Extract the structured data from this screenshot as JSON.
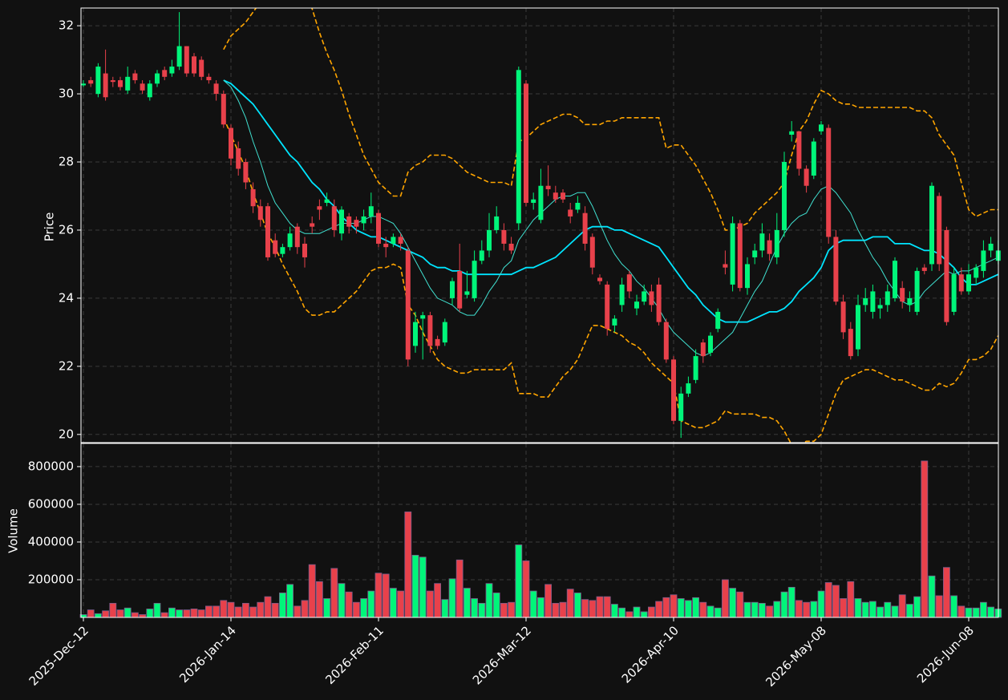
{
  "chart_data": {
    "type": "candlestick",
    "categories": [
      "2025-Dec-12",
      null,
      null,
      null,
      null,
      null,
      null,
      null,
      null,
      null,
      null,
      null,
      null,
      null,
      null,
      null,
      null,
      null,
      null,
      null,
      "2026-Jan-14",
      null,
      null,
      null,
      null,
      null,
      null,
      null,
      null,
      null,
      null,
      null,
      null,
      null,
      null,
      null,
      null,
      null,
      null,
      null,
      "2026-Feb-11",
      null,
      null,
      null,
      null,
      null,
      null,
      null,
      null,
      null,
      null,
      null,
      null,
      null,
      null,
      null,
      null,
      null,
      null,
      null,
      "2026-Mar-12",
      null,
      null,
      null,
      null,
      null,
      null,
      null,
      null,
      null,
      null,
      null,
      null,
      null,
      null,
      null,
      null,
      null,
      null,
      null,
      "2026-Apr-10",
      null,
      null,
      null,
      null,
      null,
      null,
      null,
      null,
      null,
      null,
      null,
      null,
      null,
      null,
      null,
      null,
      null,
      null,
      null,
      "2026-May-08",
      null,
      null,
      null,
      null,
      null,
      null,
      null,
      null,
      null,
      null,
      null,
      null,
      null,
      null,
      null,
      null,
      null,
      null,
      null,
      "2026-Jun-08",
      null,
      null,
      null,
      null
    ],
    "open": [
      30.25,
      30.4,
      30.0,
      30.6,
      30.4,
      30.4,
      30.1,
      30.6,
      30.3,
      29.9,
      30.3,
      30.7,
      30.6,
      30.8,
      31.4,
      31.1,
      31.0,
      30.5,
      30.3,
      30.0,
      29.0,
      28.4,
      28.0,
      27.2,
      26.7,
      26.7,
      25.7,
      25.3,
      25.5,
      26.1,
      25.6,
      26.2,
      26.7,
      26.8,
      26.7,
      25.9,
      26.4,
      26.3,
      26.2,
      26.4,
      26.5,
      25.6,
      25.6,
      25.8,
      25.4,
      22.6,
      23.4,
      23.5,
      22.8,
      22.7,
      24.0,
      24.8,
      24.1,
      24.0,
      25.1,
      25.4,
      26.0,
      26.0,
      25.6,
      26.2,
      30.3,
      26.8,
      26.3,
      27.3,
      27.1,
      27.1,
      26.6,
      26.6,
      26.5,
      25.8,
      24.6,
      24.4,
      23.2,
      23.8,
      24.7,
      23.7,
      23.9,
      24.2,
      24.4,
      23.3,
      22.2,
      20.4,
      21.2,
      21.6,
      22.7,
      22.4,
      23.1,
      25.0,
      24.4,
      26.2,
      24.3,
      25.2,
      25.4,
      25.7,
      25.2,
      26.0,
      28.8,
      28.9,
      27.8,
      27.6,
      28.9,
      29.0,
      25.8,
      23.9,
      23.1,
      22.5,
      23.8,
      23.6,
      23.7,
      23.8,
      24.0,
      24.3,
      23.8,
      23.6,
      24.9,
      25.0,
      27.0,
      26.0,
      23.6,
      24.7,
      24.2,
      24.6,
      24.8,
      25.4,
      25.1
    ],
    "high": [
      30.4,
      30.5,
      30.9,
      31.3,
      30.5,
      30.5,
      30.8,
      30.7,
      30.4,
      30.4,
      30.7,
      30.8,
      31.0,
      32.4,
      31.4,
      31.2,
      31.1,
      30.6,
      30.4,
      30.1,
      29.1,
      28.6,
      28.1,
      27.4,
      26.9,
      26.8,
      25.9,
      25.6,
      26.1,
      26.2,
      25.8,
      26.4,
      26.9,
      27.1,
      26.9,
      26.7,
      26.5,
      26.4,
      26.6,
      27.1,
      26.6,
      25.8,
      25.9,
      25.9,
      25.5,
      23.6,
      23.6,
      23.6,
      22.9,
      23.4,
      24.6,
      25.6,
      24.8,
      25.4,
      25.7,
      26.5,
      26.7,
      26.2,
      25.8,
      30.8,
      30.4,
      27.1,
      27.8,
      27.9,
      27.3,
      27.2,
      26.8,
      27.0,
      26.7,
      25.9,
      24.7,
      24.5,
      23.5,
      24.6,
      24.8,
      24.1,
      24.4,
      24.4,
      24.6,
      23.4,
      22.3,
      21.4,
      21.7,
      22.5,
      22.8,
      23.0,
      23.7,
      25.4,
      26.4,
      26.3,
      25.2,
      25.6,
      26.2,
      25.9,
      26.5,
      28.3,
      29.2,
      28.9,
      27.9,
      28.7,
      29.2,
      29.1,
      26.0,
      24.1,
      23.3,
      24.1,
      24.3,
      24.4,
      24.0,
      24.4,
      25.2,
      24.5,
      24.2,
      24.9,
      25.0,
      27.4,
      27.1,
      26.1,
      24.9,
      24.9,
      25.0,
      25.0,
      25.7,
      25.8,
      25.7
    ],
    "low": [
      30.2,
      30.2,
      29.9,
      29.8,
      30.2,
      30.1,
      30.0,
      30.3,
      30.0,
      29.8,
      30.2,
      30.4,
      30.5,
      30.7,
      30.5,
      30.5,
      30.4,
      30.3,
      29.8,
      29.0,
      27.9,
      27.6,
      27.2,
      26.5,
      26.1,
      25.1,
      25.2,
      25.2,
      25.4,
      25.3,
      24.9,
      25.9,
      26.3,
      26.7,
      25.8,
      25.7,
      25.9,
      25.9,
      26.0,
      26.2,
      25.5,
      25.2,
      25.5,
      25.4,
      22.0,
      22.4,
      22.2,
      22.4,
      22.5,
      22.6,
      23.8,
      23.6,
      24.0,
      23.9,
      25.0,
      25.2,
      25.9,
      25.4,
      25.3,
      26.0,
      26.7,
      26.6,
      26.2,
      27.0,
      26.8,
      26.8,
      26.2,
      26.5,
      25.4,
      24.7,
      24.4,
      22.9,
      23.0,
      23.6,
      24.0,
      23.5,
      23.8,
      23.6,
      23.2,
      22.1,
      20.3,
      19.9,
      21.1,
      21.5,
      22.1,
      22.3,
      23.0,
      24.7,
      24.2,
      24.2,
      24.1,
      25.0,
      25.2,
      25.1,
      25.0,
      25.8,
      28.6,
      27.6,
      27.1,
      27.5,
      28.8,
      25.6,
      23.8,
      22.8,
      22.2,
      22.3,
      23.6,
      23.4,
      23.4,
      23.6,
      23.9,
      23.7,
      23.6,
      23.5,
      24.7,
      24.8,
      24.8,
      23.2,
      23.5,
      24.1,
      24.1,
      24.4,
      24.6,
      25.2,
      25.0
    ],
    "close": [
      30.3,
      30.3,
      30.8,
      29.9,
      30.35,
      30.2,
      30.5,
      30.4,
      30.1,
      30.3,
      30.6,
      30.5,
      30.8,
      31.4,
      30.6,
      30.6,
      30.5,
      30.4,
      30.0,
      29.1,
      28.1,
      27.8,
      27.4,
      26.7,
      26.3,
      25.2,
      25.3,
      25.5,
      25.9,
      25.5,
      25.2,
      26.1,
      26.6,
      26.9,
      26.0,
      26.6,
      26.1,
      26.1,
      26.4,
      26.7,
      25.6,
      25.5,
      25.8,
      25.6,
      22.2,
      23.3,
      23.5,
      22.6,
      22.6,
      23.3,
      24.5,
      23.7,
      24.2,
      25.1,
      25.4,
      26.0,
      26.4,
      25.6,
      25.4,
      30.7,
      26.8,
      26.9,
      27.3,
      27.2,
      26.9,
      26.9,
      26.4,
      26.8,
      25.6,
      24.9,
      24.5,
      23.1,
      23.4,
      24.4,
      24.2,
      23.9,
      24.2,
      23.8,
      23.3,
      22.2,
      20.4,
      21.2,
      21.5,
      22.3,
      22.3,
      22.9,
      23.6,
      24.9,
      26.2,
      24.3,
      25.0,
      25.4,
      25.9,
      25.3,
      26.0,
      28.0,
      28.9,
      27.8,
      27.3,
      28.6,
      29.1,
      25.8,
      23.9,
      23.0,
      22.3,
      23.8,
      24.0,
      24.2,
      23.8,
      24.2,
      25.1,
      23.9,
      24.0,
      24.8,
      24.8,
      27.3,
      25.0,
      23.3,
      24.7,
      24.2,
      24.7,
      24.9,
      25.4,
      25.6,
      25.4
    ],
    "up_color": "#00f57a",
    "down_color": "#e8414b",
    "ylabel": "Price",
    "ylim": [
      19.76,
      32.52
    ],
    "yticks": [
      20,
      22,
      24,
      26,
      28,
      30,
      32
    ],
    "grid": true,
    "lines": [
      {
        "color": "#00e5ff",
        "width": 1.8,
        "dash": false,
        "values": [
          null,
          null,
          null,
          null,
          null,
          null,
          null,
          null,
          null,
          null,
          null,
          null,
          null,
          null,
          null,
          null,
          null,
          null,
          null,
          30.4,
          30.3,
          30.1,
          29.9,
          29.7,
          29.4,
          29.1,
          28.8,
          28.5,
          28.2,
          28.0,
          27.7,
          27.4,
          27.2,
          26.9,
          26.7,
          26.4,
          26.2,
          26.0,
          25.9,
          25.8,
          25.8,
          25.7,
          25.6,
          25.5,
          25.4,
          25.3,
          25.2,
          25.0,
          24.9,
          24.9,
          24.8,
          24.8,
          24.7,
          24.7,
          24.7,
          24.7,
          24.7,
          24.7,
          24.7,
          24.8,
          24.9,
          24.9,
          25.0,
          25.1,
          25.2,
          25.4,
          25.6,
          25.8,
          26.0,
          26.1,
          26.1,
          26.1,
          26.0,
          26.0,
          25.9,
          25.8,
          25.7,
          25.6,
          25.5,
          25.2,
          24.9,
          24.6,
          24.3,
          24.1,
          23.8,
          23.6,
          23.4,
          23.3,
          23.3,
          23.3,
          23.3,
          23.4,
          23.5,
          23.6,
          23.6,
          23.7,
          23.9,
          24.2,
          24.4,
          24.6,
          24.9,
          25.4,
          25.6,
          25.7,
          25.7,
          25.7,
          25.7,
          25.8,
          25.8,
          25.8,
          25.6,
          25.6,
          25.6,
          25.5,
          25.4,
          25.4,
          25.3,
          25.1,
          24.9,
          24.6,
          24.4,
          24.4,
          24.5,
          24.6,
          24.7
        ]
      },
      {
        "color": "#40e0d0",
        "width": 1,
        "dash": false,
        "values": [
          null,
          null,
          null,
          null,
          null,
          null,
          null,
          null,
          null,
          null,
          null,
          null,
          null,
          null,
          null,
          null,
          null,
          null,
          null,
          30.4,
          30.2,
          29.8,
          29.3,
          28.6,
          28.0,
          27.3,
          26.8,
          26.5,
          26.2,
          26.0,
          25.9,
          25.9,
          25.9,
          26.0,
          26.1,
          26.2,
          26.2,
          26.2,
          26.3,
          26.4,
          26.4,
          26.3,
          26.2,
          25.9,
          25.5,
          25.1,
          24.7,
          24.3,
          24.0,
          23.9,
          23.8,
          23.6,
          23.5,
          23.5,
          23.8,
          24.2,
          24.5,
          24.9,
          25.1,
          25.7,
          26.0,
          26.3,
          26.5,
          26.7,
          26.9,
          27.0,
          27.0,
          27.1,
          27.1,
          26.7,
          26.2,
          25.7,
          25.3,
          25.0,
          24.8,
          24.5,
          24.3,
          24.0,
          23.7,
          23.3,
          23.0,
          22.8,
          22.6,
          22.4,
          22.3,
          22.4,
          22.6,
          22.8,
          23.0,
          23.4,
          23.8,
          24.2,
          24.5,
          25.0,
          25.5,
          25.9,
          26.2,
          26.4,
          26.5,
          26.9,
          27.2,
          27.3,
          27.1,
          26.8,
          26.5,
          26.0,
          25.6,
          25.2,
          24.9,
          24.5,
          24.2,
          23.9,
          23.8,
          23.9,
          24.2,
          24.4,
          24.6,
          24.8,
          24.7,
          24.8,
          24.8,
          24.9,
          25.0,
          25.1,
          25.2
        ]
      },
      {
        "color": "#ffa500",
        "width": 1.6,
        "dash": true,
        "values": [
          null,
          null,
          null,
          null,
          null,
          null,
          null,
          null,
          null,
          null,
          null,
          null,
          null,
          null,
          null,
          null,
          null,
          null,
          null,
          31.3,
          31.7,
          31.9,
          32.1,
          32.4,
          32.7,
          32.9,
          33.1,
          33.2,
          33.3,
          33.2,
          32.8,
          32.5,
          31.8,
          31.2,
          30.7,
          30.1,
          29.4,
          28.8,
          28.2,
          27.8,
          27.4,
          27.2,
          27.0,
          27.0,
          27.7,
          27.9,
          28.0,
          28.2,
          28.2,
          28.2,
          28.1,
          27.9,
          27.7,
          27.6,
          27.5,
          27.4,
          27.4,
          27.4,
          27.3,
          28.6,
          28.7,
          28.9,
          29.1,
          29.2,
          29.3,
          29.4,
          29.4,
          29.3,
          29.1,
          29.1,
          29.1,
          29.2,
          29.2,
          29.3,
          29.3,
          29.3,
          29.3,
          29.3,
          29.3,
          28.4,
          28.5,
          28.5,
          28.2,
          27.9,
          27.5,
          27.1,
          26.6,
          26.0,
          26.0,
          26.1,
          26.2,
          26.5,
          26.7,
          26.9,
          27.1,
          27.4,
          28.2,
          28.9,
          29.2,
          29.7,
          30.1,
          30.0,
          29.8,
          29.7,
          29.7,
          29.6,
          29.6,
          29.6,
          29.6,
          29.6,
          29.6,
          29.6,
          29.6,
          29.5,
          29.5,
          29.3,
          28.8,
          28.5,
          28.2,
          27.4,
          26.6,
          26.4,
          26.5,
          26.6,
          26.6
        ]
      },
      {
        "color": "#ffa500",
        "width": 1.6,
        "dash": true,
        "values": [
          null,
          null,
          null,
          null,
          null,
          null,
          null,
          null,
          null,
          null,
          null,
          null,
          null,
          null,
          null,
          null,
          null,
          null,
          null,
          29.3,
          28.8,
          28.3,
          27.8,
          27.1,
          26.5,
          25.9,
          25.5,
          25.0,
          24.6,
          24.2,
          23.7,
          23.5,
          23.5,
          23.6,
          23.6,
          23.8,
          24.0,
          24.2,
          24.5,
          24.8,
          24.9,
          24.9,
          25.0,
          24.9,
          23.8,
          23.5,
          23.0,
          22.6,
          22.2,
          22.0,
          21.9,
          21.8,
          21.8,
          21.9,
          21.9,
          21.9,
          21.9,
          21.9,
          22.1,
          21.2,
          21.2,
          21.2,
          21.1,
          21.1,
          21.4,
          21.7,
          21.9,
          22.2,
          22.7,
          23.2,
          23.2,
          23.1,
          23.0,
          22.9,
          22.7,
          22.6,
          22.4,
          22.1,
          21.9,
          21.7,
          21.5,
          20.4,
          20.3,
          20.2,
          20.2,
          20.3,
          20.4,
          20.7,
          20.6,
          20.6,
          20.6,
          20.6,
          20.5,
          20.5,
          20.4,
          20.1,
          19.7,
          19.7,
          19.8,
          19.8,
          20.0,
          20.6,
          21.2,
          21.6,
          21.7,
          21.8,
          21.9,
          21.9,
          21.8,
          21.7,
          21.6,
          21.6,
          21.5,
          21.4,
          21.3,
          21.3,
          21.5,
          21.4,
          21.5,
          21.8,
          22.2,
          22.2,
          22.3,
          22.5,
          22.9
        ]
      }
    ],
    "volume": {
      "ylabel": "Volume",
      "ylim": [
        0,
        923000
      ],
      "yticks": [
        200000,
        400000,
        600000,
        800000
      ],
      "values": [
        15000,
        40000,
        20000,
        35000,
        75000,
        40000,
        50000,
        25000,
        15000,
        45000,
        75000,
        25000,
        50000,
        40000,
        40000,
        45000,
        40000,
        60000,
        60000,
        90000,
        80000,
        55000,
        75000,
        55000,
        80000,
        110000,
        75000,
        130000,
        175000,
        60000,
        90000,
        280000,
        190000,
        100000,
        260000,
        180000,
        135000,
        80000,
        100000,
        140000,
        235000,
        230000,
        155000,
        140000,
        560000,
        330000,
        320000,
        140000,
        180000,
        95000,
        205000,
        305000,
        155000,
        100000,
        75000,
        180000,
        130000,
        75000,
        80000,
        385000,
        300000,
        140000,
        105000,
        175000,
        75000,
        80000,
        150000,
        130000,
        95000,
        90000,
        110000,
        110000,
        70000,
        50000,
        30000,
        55000,
        30000,
        55000,
        85000,
        105000,
        120000,
        100000,
        90000,
        105000,
        80000,
        60000,
        50000,
        200000,
        155000,
        135000,
        80000,
        80000,
        75000,
        60000,
        85000,
        135000,
        160000,
        90000,
        80000,
        85000,
        140000,
        185000,
        170000,
        100000,
        190000,
        100000,
        80000,
        85000,
        55000,
        80000,
        60000,
        120000,
        70000,
        110000,
        830000,
        220000,
        115000,
        265000,
        115000,
        60000,
        50000,
        50000,
        80000,
        55000,
        45000
      ]
    }
  }
}
